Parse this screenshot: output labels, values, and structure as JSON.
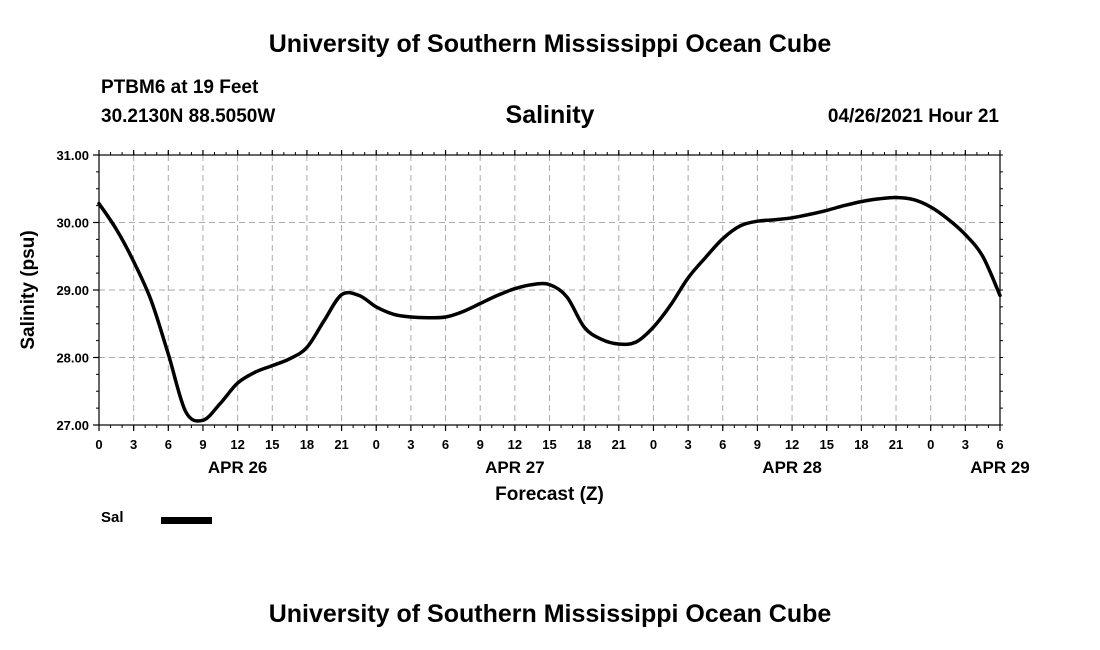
{
  "header": {
    "title": "University of Southern Mississippi Ocean Cube",
    "station": "PTBM6 at 19 Feet",
    "coordinates": "30.2130N  88.5050W",
    "timestamp": "04/26/2021 Hour 21"
  },
  "footer": {
    "title": "University of Southern Mississippi Ocean Cube"
  },
  "legend": {
    "label": "Sal",
    "color": "#000000"
  },
  "chart_data": {
    "type": "line",
    "title": "Salinity",
    "xlabel": "Forecast (Z)",
    "ylabel": "Salinity (psu)",
    "ylim": [
      27.0,
      31.0
    ],
    "xlim": [
      0,
      78
    ],
    "grid": true,
    "y_ticks": [
      "27.00",
      "28.00",
      "29.00",
      "30.00",
      "31.00"
    ],
    "x_tick_labels": [
      "0",
      "3",
      "6",
      "9",
      "12",
      "15",
      "18",
      "21",
      "0",
      "3",
      "6",
      "9",
      "12",
      "15",
      "18",
      "21",
      "0",
      "3",
      "6",
      "9",
      "12",
      "15",
      "18",
      "21",
      "0",
      "3",
      "6"
    ],
    "date_labels": [
      {
        "label": "APR 26",
        "hour": 12
      },
      {
        "label": "APR 27",
        "hour": 36
      },
      {
        "label": "APR 28",
        "hour": 60
      },
      {
        "label": "APR 29",
        "hour": 78
      }
    ],
    "series": [
      {
        "name": "Sal",
        "hours": [
          0,
          1.5,
          3,
          4.5,
          6,
          7.5,
          9,
          10.5,
          12,
          13.5,
          15,
          16.5,
          18,
          19.5,
          21,
          22.5,
          24,
          25.5,
          27,
          28.5,
          30,
          31.5,
          33,
          34.5,
          36,
          37.5,
          39,
          40.5,
          42,
          43.5,
          45,
          46.5,
          48,
          49.5,
          51,
          52.5,
          54,
          55.5,
          57,
          58.5,
          60,
          61.5,
          63,
          64.5,
          66,
          67.5,
          69,
          70.5,
          72,
          73.5,
          75,
          76.5,
          78
        ],
        "values": [
          30.28,
          29.9,
          29.42,
          28.85,
          28.05,
          27.2,
          27.07,
          27.32,
          27.62,
          27.78,
          27.88,
          27.98,
          28.15,
          28.55,
          28.93,
          28.92,
          28.75,
          28.64,
          28.6,
          28.59,
          28.6,
          28.68,
          28.8,
          28.92,
          29.02,
          29.08,
          29.08,
          28.9,
          28.45,
          28.27,
          28.2,
          28.23,
          28.45,
          28.78,
          29.18,
          29.48,
          29.76,
          29.95,
          30.02,
          30.04,
          30.07,
          30.12,
          30.18,
          30.25,
          30.31,
          30.35,
          30.37,
          30.34,
          30.23,
          30.05,
          29.82,
          29.5,
          28.92
        ]
      }
    ]
  }
}
